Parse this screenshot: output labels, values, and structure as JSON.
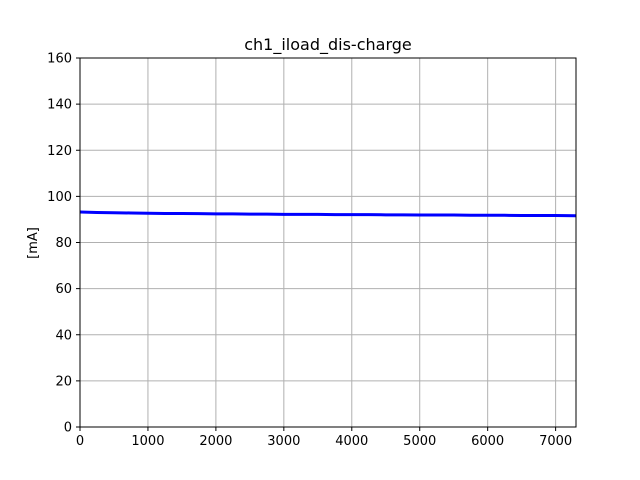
{
  "chart_data": {
    "type": "line",
    "title": "ch1_iload_dis-charge",
    "xlabel": "",
    "ylabel": "[mA]",
    "xlim": [
      0,
      7300
    ],
    "ylim": [
      0,
      160
    ],
    "x_ticks": [
      0,
      1000,
      2000,
      3000,
      4000,
      5000,
      6000,
      7000
    ],
    "y_ticks": [
      0,
      20,
      40,
      60,
      80,
      100,
      120,
      140,
      160
    ],
    "grid": true,
    "legend": "none",
    "colors": {
      "series": "#0000ff",
      "grid": "#b0b0b0",
      "axes": "#000000"
    },
    "series": [
      {
        "x": [
          0,
          250,
          500,
          750,
          1000,
          1250,
          1500,
          1750,
          2000,
          2250,
          2500,
          2750,
          3000,
          3250,
          3500,
          3750,
          4000,
          4250,
          4500,
          4750,
          5000,
          5250,
          5500,
          5750,
          6000,
          6250,
          6500,
          6750,
          7000,
          7300
        ],
        "values": [
          93.2,
          93.0,
          92.9,
          92.8,
          92.7,
          92.6,
          92.6,
          92.5,
          92.4,
          92.4,
          92.3,
          92.3,
          92.2,
          92.2,
          92.2,
          92.1,
          92.1,
          92.1,
          92.0,
          92.0,
          91.9,
          91.9,
          91.9,
          91.8,
          91.8,
          91.8,
          91.7,
          91.7,
          91.7,
          91.6
        ]
      }
    ]
  }
}
